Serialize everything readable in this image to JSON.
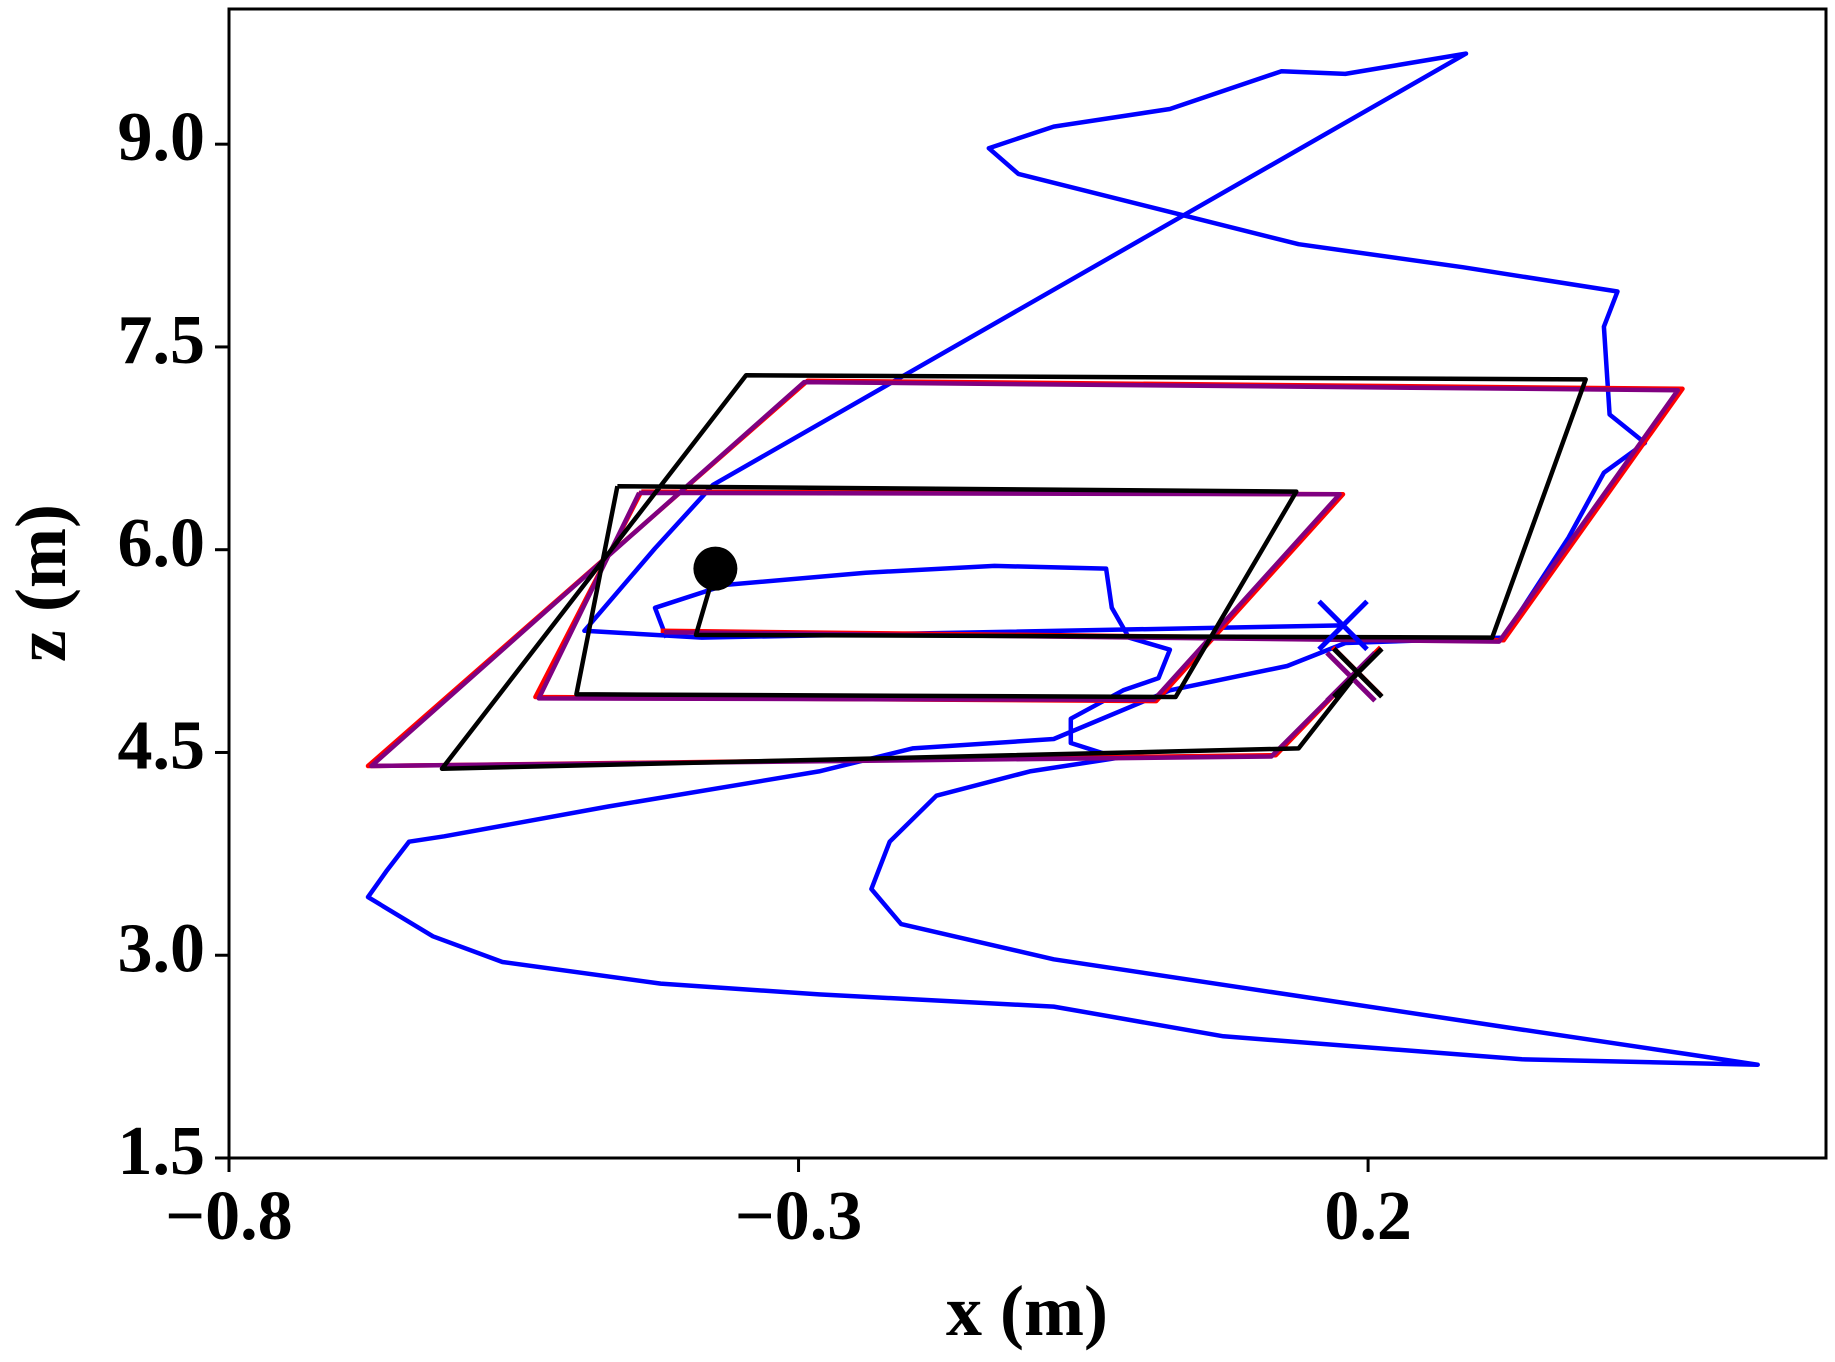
{
  "chart_data": {
    "type": "line",
    "xlabel": "x (m)",
    "ylabel": "z (m)",
    "xlim": [
      -0.8,
      0.602
    ],
    "ylim": [
      1.5,
      10.0
    ],
    "xticks": [
      {
        "value": -0.8,
        "label": "−0.8"
      },
      {
        "value": -0.3,
        "label": "−0.3"
      },
      0.2
    ],
    "yticks": [
      1.5,
      {
        "value": 3,
        "label": "3.0"
      },
      4.5,
      {
        "value": 6,
        "label": "6.0"
      },
      7.5,
      {
        "value": 9,
        "label": "9.0"
      }
    ],
    "series": [
      {
        "color": "#0000ff",
        "x": [
          -0.416,
          -0.426,
          -0.364,
          -0.241,
          -0.128,
          -0.03,
          -0.025,
          -0.01,
          0.026,
          0.016,
          -0.015,
          -0.061,
          -0.061,
          -0.02,
          -0.097,
          -0.179,
          -0.22,
          -0.236,
          -0.21,
          -0.076,
          0.129,
          0.335,
          0.479,
          0.542,
          0.335,
          0.073,
          -0.076,
          -0.282,
          -0.421,
          -0.56,
          -0.621,
          -0.678,
          -0.662,
          -0.642,
          -0.611,
          -0.467,
          -0.282,
          -0.2,
          -0.076,
          0.026,
          0.129,
          0.18,
          0.319,
          0.376,
          0.407,
          0.443,
          0.412,
          0.407,
          0.419,
          0.283,
          0.139,
          0.016,
          -0.107,
          -0.133,
          -0.076,
          0.026,
          0.124,
          0.18,
          0.286,
          -0.375,
          -0.426,
          -0.488,
          -0.385,
          0.178
        ],
        "y": [
          5.35,
          5.57,
          5.74,
          5.83,
          5.88,
          5.86,
          5.57,
          5.35,
          5.26,
          5.05,
          4.96,
          4.75,
          4.57,
          4.46,
          4.36,
          4.18,
          3.84,
          3.49,
          3.23,
          2.97,
          2.71,
          2.45,
          2.27,
          2.19,
          2.23,
          2.4,
          2.62,
          2.71,
          2.79,
          2.95,
          3.14,
          3.43,
          3.62,
          3.84,
          3.88,
          4.1,
          4.36,
          4.53,
          4.6,
          4.96,
          5.14,
          5.31,
          5.35,
          6.09,
          6.57,
          6.79,
          7.0,
          7.65,
          7.91,
          8.09,
          8.26,
          8.52,
          8.78,
          8.97,
          9.13,
          9.26,
          9.54,
          9.52,
          9.67,
          6.48,
          6.01,
          5.4,
          5.35,
          5.44
        ]
      },
      {
        "color": "#ff0000",
        "x": [
          -0.421,
          0.319,
          0.476,
          -0.292,
          -0.678,
          0.119,
          0.19,
          null,
          -0.438,
          0.178,
          0.014,
          -0.531,
          -0.438
        ],
        "y": [
          5.4,
          5.33,
          7.19,
          7.25,
          4.4,
          4.48,
          5.1,
          null,
          6.43,
          6.41,
          4.88,
          4.91,
          6.43
        ]
      },
      {
        "color": "#800080",
        "x": [
          -0.418,
          0.315,
          0.472,
          -0.295,
          -0.675,
          0.115,
          0.185,
          null,
          -0.44,
          0.175,
          0.012,
          -0.528,
          -0.44
        ],
        "y": [
          5.39,
          5.32,
          7.18,
          7.24,
          4.4,
          4.47,
          5.06,
          null,
          6.42,
          6.41,
          4.89,
          4.9,
          6.42
        ]
      },
      {
        "color": "#000000",
        "x": [
          -0.373,
          -0.39,
          0.309,
          0.391,
          -0.346,
          -0.613,
          0.139,
          0.191,
          null,
          -0.459,
          0.137,
          0.031,
          -0.495,
          -0.459
        ],
        "y": [
          5.86,
          5.37,
          5.35,
          7.26,
          7.29,
          4.38,
          4.53,
          5.09,
          null,
          6.47,
          6.43,
          4.91,
          4.93,
          6.47
        ]
      }
    ],
    "markers": [
      {
        "symbol": "o",
        "color": "#000000",
        "x": -0.373,
        "y": 5.86
      },
      {
        "symbol": "x",
        "color": "#0000ff",
        "x": 0.178,
        "y": 5.44
      },
      {
        "symbol": "x",
        "color": "#ff0000",
        "x": 0.19,
        "y": 5.1
      },
      {
        "symbol": "x",
        "color": "#800080",
        "x": 0.185,
        "y": 5.06
      },
      {
        "symbol": "x",
        "color": "#000000",
        "x": 0.191,
        "y": 5.09
      }
    ]
  }
}
